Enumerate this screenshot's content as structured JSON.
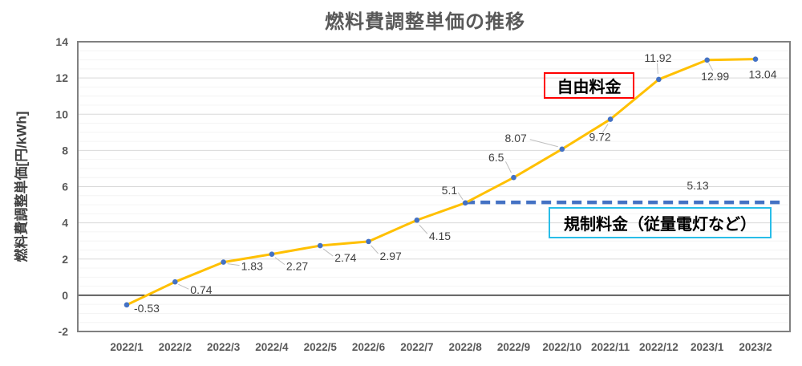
{
  "title": "燃料費調整単価の推移",
  "y_axis_title": "燃料費調整単価[円/kWh]",
  "annotations": {
    "free_rate": "自由料金",
    "regulated_rate": "規制料金（従量電灯など）"
  },
  "colors": {
    "series_line": "#FFC000",
    "marker": "#4472C4",
    "regulated_line": "#4472C4",
    "free_box_border": "#FF0000",
    "regulated_box_border": "#29BDE8",
    "title_text": "#595959",
    "axis_text": "#595959",
    "data_label_text": "#404040",
    "leader_line": "#BFBFBF",
    "major_grid": "#D9D9D9",
    "minor_grid": "#F4F4F4",
    "plot_border": "#808080",
    "zero_line": "#000000"
  },
  "chart_data": {
    "type": "line",
    "title": "燃料費調整単価の推移",
    "xlabel": "",
    "ylabel": "燃料費調整単価[円/kWh]",
    "categories": [
      "2022/1",
      "2022/2",
      "2022/3",
      "2022/4",
      "2022/5",
      "2022/6",
      "2022/7",
      "2022/8",
      "2022/9",
      "2022/10",
      "2022/11",
      "2022/12",
      "2023/1",
      "2023/2"
    ],
    "series": [
      {
        "name": "自由料金",
        "type": "line",
        "color": "#FFC000",
        "marker": "circle",
        "marker_color": "#4472C4",
        "values": [
          -0.53,
          0.74,
          1.83,
          2.27,
          2.74,
          2.97,
          4.15,
          5.1,
          6.5,
          8.07,
          9.72,
          11.92,
          12.99,
          13.04
        ],
        "labels": [
          "-0.53",
          "0.74",
          "1.83",
          "2.27",
          "2.74",
          "2.97",
          "4.15",
          "5.1",
          "6.5",
          "8.07",
          "9.72",
          "11.92",
          "12.99",
          "13.04"
        ]
      },
      {
        "name": "規制料金（従量電灯など）",
        "type": "line",
        "style": "dashed",
        "color": "#4472C4",
        "value": 5.13,
        "label": "5.13",
        "start_category": "2022/8",
        "end_category": "2023/2"
      }
    ],
    "ylim": [
      -2,
      14
    ],
    "y_tick_step": 2,
    "y_minor_step": 0.5,
    "grid": true,
    "legend_position": "none"
  }
}
